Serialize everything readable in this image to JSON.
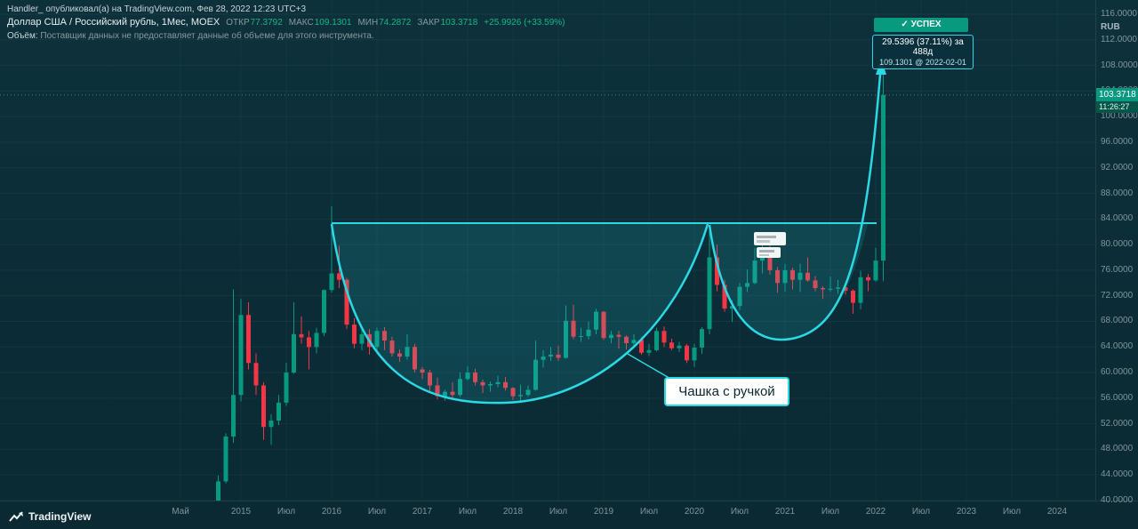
{
  "colors": {
    "up": "#089981",
    "down": "#f23645",
    "accent": "#2bd9e5",
    "bg": "#0a2933",
    "badge_green": "#089981"
  },
  "header": {
    "byline": "Handler_ опубликовал(а) на TradingView.com, Фев 28, 2022 12:23 UTC+3",
    "symbol_title": "Доллар США / Российский рубль, 1Мес, MOEX",
    "ohlc": {
      "open_label": "ОТКР",
      "open": "77.3792",
      "high_label": "МАКС",
      "high": "109.1301",
      "low_label": "МИН",
      "low": "74.2872",
      "close_label": "ЗАКР",
      "close": "103.3718",
      "change": "+25.9926 (+33.59%)"
    },
    "volume_label": "Объём:",
    "volume_note": "Поставщик данных не предоставляет данные об объеме для этого инструмента."
  },
  "annotations": {
    "success_badge": "✓ УСПЕХ",
    "measure_line1": "29.5396 (37.11%) за 488д",
    "measure_line2": "109.1301 @ 2022-02-01",
    "pattern_label": "Чашка с ручкой"
  },
  "quote": {
    "last": "103.3718",
    "countdown": "11:26:27"
  },
  "watermark": "TradingView",
  "chart_data": {
    "type": "candlestick",
    "title": "Доллар США / Российский рубль, 1Мес, MOEX",
    "currency": "RUB",
    "interval": "1Мес",
    "price_range": [
      40,
      116
    ],
    "grid": true,
    "last_price": 103.3718,
    "y_ticks": [
      "116.0000",
      "112.0000",
      "108.0000",
      "104.0000",
      "100.0000",
      "96.0000",
      "92.0000",
      "88.0000",
      "84.0000",
      "80.0000",
      "76.0000",
      "72.0000",
      "68.0000",
      "64.0000",
      "60.0000",
      "56.0000",
      "52.0000",
      "48.0000",
      "44.0000",
      "40.0000"
    ],
    "x_ticks": [
      {
        "label": "Май",
        "ym": "2014-05"
      },
      {
        "label": "2015",
        "ym": "2015-01"
      },
      {
        "label": "Июл",
        "ym": "2015-07"
      },
      {
        "label": "2016",
        "ym": "2016-01"
      },
      {
        "label": "Июл",
        "ym": "2016-07"
      },
      {
        "label": "2017",
        "ym": "2017-01"
      },
      {
        "label": "Июл",
        "ym": "2017-07"
      },
      {
        "label": "2018",
        "ym": "2018-01"
      },
      {
        "label": "Июл",
        "ym": "2018-07"
      },
      {
        "label": "2019",
        "ym": "2019-01"
      },
      {
        "label": "Июл",
        "ym": "2019-07"
      },
      {
        "label": "2020",
        "ym": "2020-01"
      },
      {
        "label": "Июл",
        "ym": "2020-07"
      },
      {
        "label": "2021",
        "ym": "2021-01"
      },
      {
        "label": "Июл",
        "ym": "2021-07"
      },
      {
        "label": "2022",
        "ym": "2022-01"
      },
      {
        "label": "Июл",
        "ym": "2022-07"
      },
      {
        "label": "2023",
        "ym": "2023-01"
      },
      {
        "label": "Июл",
        "ym": "2023-07"
      },
      {
        "label": "2024",
        "ym": "2024-01"
      }
    ],
    "candles_format": [
      "month",
      "open",
      "high",
      "low",
      "close"
    ],
    "candles": [
      [
        "2014-09",
        37.0,
        39.8,
        36.5,
        39.5
      ],
      [
        "2014-10",
        39.5,
        43.9,
        39.0,
        43.0
      ],
      [
        "2014-11",
        43.0,
        50.5,
        42.7,
        50.0
      ],
      [
        "2014-12",
        50.0,
        73.0,
        49.0,
        56.5
      ],
      [
        "2015-01",
        56.5,
        71.5,
        55.5,
        69.0
      ],
      [
        "2015-02",
        69.0,
        71.0,
        60.5,
        61.5
      ],
      [
        "2015-03",
        61.5,
        63.0,
        56.5,
        58.0
      ],
      [
        "2015-04",
        58.0,
        58.5,
        49.5,
        51.5
      ],
      [
        "2015-05",
        51.5,
        53.5,
        48.7,
        52.5
      ],
      [
        "2015-06",
        52.5,
        56.5,
        51.8,
        55.3
      ],
      [
        "2015-07",
        55.3,
        61.5,
        54.8,
        60.0
      ],
      [
        "2015-08",
        60.0,
        71.0,
        59.8,
        66.0
      ],
      [
        "2015-09",
        66.0,
        68.8,
        64.5,
        65.5
      ],
      [
        "2015-10",
        65.5,
        66.5,
        60.5,
        64.0
      ],
      [
        "2015-11",
        64.0,
        67.0,
        63.0,
        66.2
      ],
      [
        "2015-12",
        66.2,
        73.0,
        65.7,
        72.9
      ],
      [
        "2016-01",
        72.9,
        86.0,
        72.5,
        75.5
      ],
      [
        "2016-02",
        75.5,
        79.8,
        73.2,
        74.5
      ],
      [
        "2016-03",
        74.5,
        74.8,
        66.8,
        67.5
      ],
      [
        "2016-04",
        67.5,
        68.5,
        63.8,
        64.5
      ],
      [
        "2016-05",
        64.5,
        67.0,
        63.5,
        66.0
      ],
      [
        "2016-06",
        66.0,
        66.8,
        62.8,
        64.0
      ],
      [
        "2016-07",
        64.0,
        67.0,
        62.9,
        66.5
      ],
      [
        "2016-08",
        66.5,
        67.1,
        63.5,
        65.0
      ],
      [
        "2016-09",
        65.0,
        65.6,
        62.5,
        63.0
      ],
      [
        "2016-10",
        63.0,
        63.6,
        61.7,
        62.5
      ],
      [
        "2016-11",
        62.5,
        66.0,
        62.0,
        64.0
      ],
      [
        "2016-12",
        64.0,
        64.5,
        60.0,
        60.5
      ],
      [
        "2017-01",
        60.5,
        60.9,
        59.0,
        60.0
      ],
      [
        "2017-02",
        60.0,
        60.4,
        57.0,
        58.0
      ],
      [
        "2017-03",
        58.0,
        59.2,
        55.8,
        56.3
      ],
      [
        "2017-04",
        56.3,
        57.3,
        55.6,
        57.0
      ],
      [
        "2017-05",
        57.0,
        58.5,
        55.8,
        56.5
      ],
      [
        "2017-06",
        56.5,
        60.0,
        56.2,
        59.0
      ],
      [
        "2017-07",
        59.0,
        61.0,
        58.8,
        60.0
      ],
      [
        "2017-08",
        60.0,
        60.6,
        58.0,
        58.5
      ],
      [
        "2017-09",
        58.5,
        58.9,
        56.8,
        58.0
      ],
      [
        "2017-10",
        58.0,
        58.6,
        57.0,
        58.2
      ],
      [
        "2017-11",
        58.2,
        59.5,
        57.7,
        58.5
      ],
      [
        "2017-12",
        58.5,
        59.3,
        57.2,
        57.6
      ],
      [
        "2018-01",
        57.6,
        57.7,
        55.7,
        56.3
      ],
      [
        "2018-02",
        56.3,
        58.1,
        55.6,
        56.5
      ],
      [
        "2018-03",
        56.5,
        58.0,
        56.2,
        57.3
      ],
      [
        "2018-04",
        57.3,
        65.0,
        57.2,
        62.0
      ],
      [
        "2018-05",
        62.0,
        63.5,
        60.8,
        62.5
      ],
      [
        "2018-06",
        62.5,
        64.0,
        61.8,
        62.8
      ],
      [
        "2018-07",
        62.8,
        64.2,
        61.8,
        62.3
      ],
      [
        "2018-08",
        62.3,
        70.5,
        62.2,
        68.1
      ],
      [
        "2018-09",
        68.1,
        70.6,
        65.2,
        65.6
      ],
      [
        "2018-10",
        65.6,
        67.0,
        64.8,
        65.7
      ],
      [
        "2018-11",
        65.7,
        68.0,
        65.2,
        66.7
      ],
      [
        "2018-12",
        66.7,
        70.0,
        66.0,
        69.5
      ],
      [
        "2019-01",
        69.5,
        69.6,
        65.1,
        65.4
      ],
      [
        "2019-02",
        65.4,
        66.5,
        64.6,
        65.9
      ],
      [
        "2019-03",
        65.9,
        66.5,
        63.7,
        65.6
      ],
      [
        "2019-04",
        65.6,
        65.8,
        63.6,
        64.6
      ],
      [
        "2019-05",
        64.6,
        66.0,
        64.2,
        65.1
      ],
      [
        "2019-06",
        65.1,
        65.5,
        62.8,
        63.1
      ],
      [
        "2019-07",
        63.1,
        64.5,
        62.6,
        63.5
      ],
      [
        "2019-08",
        63.5,
        67.0,
        63.3,
        66.5
      ],
      [
        "2019-09",
        66.5,
        67.2,
        64.0,
        64.7
      ],
      [
        "2019-10",
        64.7,
        65.3,
        63.5,
        63.8
      ],
      [
        "2019-11",
        63.8,
        64.8,
        63.2,
        64.2
      ],
      [
        "2019-12",
        64.2,
        64.5,
        61.5,
        61.9
      ],
      [
        "2020-01",
        61.9,
        64.5,
        60.9,
        63.9
      ],
      [
        "2020-02",
        63.9,
        67.1,
        62.9,
        66.8
      ],
      [
        "2020-03",
        66.8,
        83.0,
        66.0,
        78.0
      ],
      [
        "2020-04",
        78.0,
        80.0,
        72.7,
        73.7
      ],
      [
        "2020-05",
        73.7,
        74.5,
        69.5,
        70.0
      ],
      [
        "2020-06",
        70.0,
        71.3,
        67.9,
        70.4
      ],
      [
        "2020-07",
        70.4,
        74.0,
        69.8,
        73.4
      ],
      [
        "2020-08",
        73.4,
        76.1,
        72.6,
        74.0
      ],
      [
        "2020-09",
        74.0,
        79.5,
        73.8,
        77.5
      ],
      [
        "2020-10",
        77.5,
        80.5,
        75.5,
        79.0
      ],
      [
        "2020-11",
        79.0,
        80.9,
        75.3,
        76.0
      ],
      [
        "2020-12",
        76.0,
        76.5,
        72.5,
        74.0
      ],
      [
        "2021-01",
        74.0,
        77.0,
        72.6,
        76.0
      ],
      [
        "2021-02",
        76.0,
        76.4,
        73.0,
        74.5
      ],
      [
        "2021-03",
        74.5,
        77.0,
        72.6,
        75.6
      ],
      [
        "2021-04",
        75.6,
        78.0,
        74.2,
        74.4
      ],
      [
        "2021-05",
        74.4,
        75.1,
        72.7,
        73.2
      ],
      [
        "2021-06",
        73.2,
        73.5,
        71.5,
        73.0
      ],
      [
        "2021-07",
        73.0,
        75.0,
        72.6,
        73.1
      ],
      [
        "2021-08",
        73.1,
        74.5,
        72.3,
        73.3
      ],
      [
        "2021-09",
        73.3,
        73.9,
        72.2,
        72.8
      ],
      [
        "2021-10",
        72.8,
        73.0,
        69.2,
        70.9
      ],
      [
        "2021-11",
        70.9,
        75.9,
        69.9,
        74.9
      ],
      [
        "2021-12",
        74.9,
        75.4,
        72.7,
        74.4
      ],
      [
        "2022-01",
        74.4,
        79.5,
        74.2,
        77.5
      ],
      [
        "2022-02",
        77.5,
        109.13,
        74.29,
        103.37
      ]
    ]
  }
}
